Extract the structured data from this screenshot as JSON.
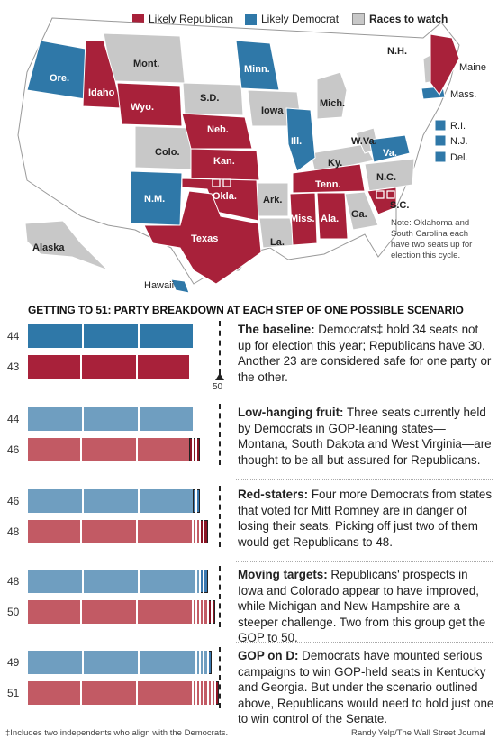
{
  "legend": {
    "republican": "Likely Republican",
    "democrat": "Likely Democrat",
    "watch": "Races to watch"
  },
  "colors": {
    "republican": "#a8213a",
    "democrat": "#2f78a8",
    "watch": "#c8c8c8",
    "dem_light": "#6f9ec0",
    "rep_light": "#c25a64",
    "dem_dark": "#3a78b0",
    "rep_dark": "#8a1424"
  },
  "map": {
    "states": {
      "ore": "Ore.",
      "idaho": "Idaho",
      "wyo": "Wyo.",
      "mont": "Mont.",
      "sd": "S.D.",
      "minn": "Minn.",
      "neb": "Neb.",
      "iowa": "Iowa",
      "mich": "Mich.",
      "colo": "Colo.",
      "kan": "Kan.",
      "ill": "Ill.",
      "ky": "Ky.",
      "wva": "W.Va.",
      "va": "Va.",
      "nm": "N.M.",
      "okla": "Okla.",
      "ark": "Ark.",
      "tenn": "Tenn.",
      "nc": "N.C.",
      "sc": "S.C.",
      "texas": "Texas",
      "miss": "Miss.",
      "ala": "Ala.",
      "ga": "Ga.",
      "la": "La.",
      "alaska": "Alaska",
      "hawaii": "Hawaii",
      "nh": "N.H.",
      "maine": "Maine",
      "mass": "Mass.",
      "ri": "R.I.",
      "nj": "N.J.",
      "del": "Del."
    },
    "note": "Note: Oklahoma and South Carolina each have two seats up for election this cycle."
  },
  "headline": "GETTING TO 51: PARTY BREAKDOWN AT EACH STEP OF ONE POSSIBLE SCENARIO",
  "marker_label": "50",
  "chart_data": {
    "type": "bar",
    "title": "GETTING TO 51: PARTY BREAKDOWN AT EACH STEP OF ONE POSSIBLE SCENARIO",
    "categories": [
      "The baseline",
      "Low-hanging fruit",
      "Red-staters",
      "Moving targets",
      "GOP on D"
    ],
    "series": [
      {
        "name": "Democrats",
        "values": [
          44,
          44,
          46,
          48,
          49
        ]
      },
      {
        "name": "Republicans",
        "values": [
          43,
          46,
          48,
          50,
          51
        ]
      }
    ],
    "threshold": 50,
    "xlim": [
      0,
      51
    ]
  },
  "steps": [
    {
      "title": "The baseline:",
      "body": " Democrats‡ hold 34 seats not up for election this year; Republicans have 30. Another 23 are considered safe for one party or the other.",
      "dem": 44,
      "rep": 43,
      "dem_label": "44",
      "rep_label": "43"
    },
    {
      "title": "Low-hanging fruit:",
      "body": " Three seats currently held by Democrats in GOP-leaning states—Montana, South Dakota and West Virginia—are thought to be all but assured for Republicans.",
      "dem": 44,
      "rep": 46,
      "dem_label": "44",
      "rep_label": "46"
    },
    {
      "title": "Red-staters:",
      "body": " Four more Democrats from states that voted for Mitt Romney are in danger of losing their seats. Picking off just two of them would get Republicans to 48.",
      "dem": 46,
      "rep": 48,
      "dem_label": "46",
      "rep_label": "48"
    },
    {
      "title": "Moving targets:",
      "body": " Republicans' prospects in Iowa and Colorado appear to have improved, while Michigan and New Hampshire are a steeper challenge. Two from this group get the GOP to 50.",
      "dem": 48,
      "rep": 50,
      "dem_label": "48",
      "rep_label": "50"
    },
    {
      "title": "GOP on D:",
      "body": " Democrats have mounted serious campaigns to win GOP-held seats in Kentucky and Georgia. But under the scenario outlined above, Republicans would need to hold just one to win control of the Senate.",
      "dem": 49,
      "rep": 51,
      "dem_label": "49",
      "rep_label": "51"
    }
  ],
  "footnote": "‡Includes two independents who align with the Democrats.",
  "credit": "Randy Yelp/The Wall Street Journal"
}
